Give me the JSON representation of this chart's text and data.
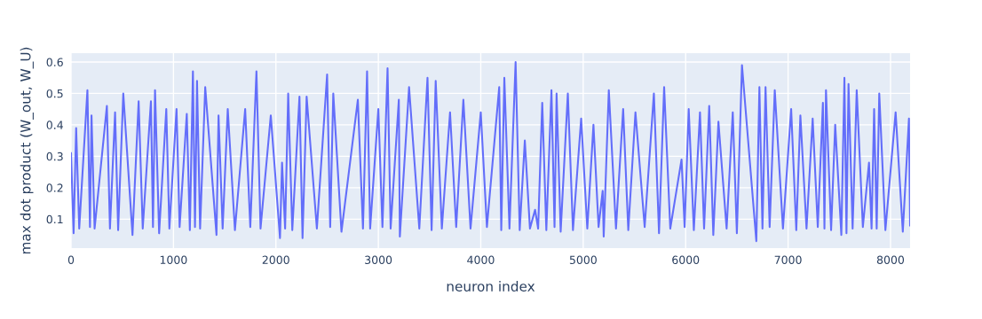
{
  "chart_data": {
    "type": "line",
    "xlabel": "neuron index",
    "ylabel": "max dot product (W_out, W_U)",
    "xlim": [
      0,
      8191
    ],
    "ylim": [
      0.008,
      0.628
    ],
    "xticks": [
      0,
      1000,
      2000,
      3000,
      4000,
      5000,
      6000,
      7000,
      8000
    ],
    "yticks": [
      0.1,
      0.2,
      0.3,
      0.4,
      0.5,
      0.6
    ],
    "grid": true,
    "legend": false,
    "marker": "none",
    "line_style": "solid",
    "series": [
      {
        "color": "#636efa",
        "x": [
          0,
          25,
          50,
          80,
          160,
          185,
          200,
          230,
          350,
          380,
          430,
          460,
          510,
          600,
          660,
          700,
          780,
          800,
          820,
          860,
          930,
          960,
          1030,
          1060,
          1130,
          1160,
          1190,
          1210,
          1230,
          1260,
          1310,
          1420,
          1440,
          1480,
          1530,
          1600,
          1700,
          1750,
          1810,
          1850,
          1950,
          2040,
          2060,
          2090,
          2120,
          2160,
          2230,
          2260,
          2300,
          2400,
          2500,
          2530,
          2560,
          2640,
          2800,
          2850,
          2890,
          2920,
          3000,
          3040,
          3090,
          3120,
          3200,
          3210,
          3300,
          3400,
          3480,
          3520,
          3560,
          3620,
          3700,
          3760,
          3830,
          3900,
          4000,
          4060,
          4180,
          4200,
          4230,
          4280,
          4340,
          4380,
          4430,
          4480,
          4530,
          4560,
          4600,
          4640,
          4690,
          4720,
          4740,
          4780,
          4850,
          4900,
          4980,
          5040,
          5100,
          5150,
          5190,
          5200,
          5250,
          5320,
          5390,
          5440,
          5510,
          5600,
          5690,
          5740,
          5790,
          5850,
          5960,
          5990,
          6030,
          6080,
          6140,
          6180,
          6230,
          6270,
          6320,
          6400,
          6460,
          6500,
          6550,
          6690,
          6720,
          6750,
          6780,
          6820,
          6870,
          6950,
          7030,
          7080,
          7120,
          7180,
          7240,
          7290,
          7340,
          7355,
          7370,
          7420,
          7460,
          7520,
          7550,
          7570,
          7590,
          7630,
          7670,
          7730,
          7790,
          7815,
          7840,
          7865,
          7890,
          7950,
          8050,
          8120,
          8180,
          8191
        ],
        "values": [
          0.31,
          0.055,
          0.39,
          0.07,
          0.51,
          0.075,
          0.43,
          0.07,
          0.46,
          0.07,
          0.44,
          0.065,
          0.5,
          0.05,
          0.475,
          0.07,
          0.475,
          0.075,
          0.51,
          0.055,
          0.45,
          0.07,
          0.45,
          0.075,
          0.435,
          0.065,
          0.57,
          0.075,
          0.54,
          0.07,
          0.52,
          0.05,
          0.43,
          0.07,
          0.45,
          0.065,
          0.45,
          0.075,
          0.57,
          0.07,
          0.43,
          0.04,
          0.28,
          0.07,
          0.5,
          0.065,
          0.49,
          0.04,
          0.49,
          0.07,
          0.56,
          0.075,
          0.5,
          0.06,
          0.48,
          0.07,
          0.57,
          0.07,
          0.45,
          0.075,
          0.58,
          0.07,
          0.48,
          0.045,
          0.52,
          0.07,
          0.55,
          0.065,
          0.54,
          0.07,
          0.44,
          0.075,
          0.48,
          0.07,
          0.44,
          0.075,
          0.52,
          0.065,
          0.55,
          0.07,
          0.6,
          0.065,
          0.35,
          0.07,
          0.13,
          0.07,
          0.47,
          0.065,
          0.51,
          0.075,
          0.5,
          0.06,
          0.5,
          0.065,
          0.42,
          0.07,
          0.4,
          0.075,
          0.19,
          0.045,
          0.51,
          0.07,
          0.45,
          0.065,
          0.44,
          0.075,
          0.5,
          0.055,
          0.52,
          0.07,
          0.29,
          0.075,
          0.45,
          0.065,
          0.44,
          0.07,
          0.46,
          0.05,
          0.41,
          0.07,
          0.44,
          0.055,
          0.59,
          0.03,
          0.52,
          0.07,
          0.52,
          0.075,
          0.51,
          0.07,
          0.45,
          0.065,
          0.43,
          0.07,
          0.42,
          0.075,
          0.47,
          0.07,
          0.51,
          0.065,
          0.4,
          0.05,
          0.55,
          0.055,
          0.53,
          0.07,
          0.51,
          0.075,
          0.28,
          0.07,
          0.45,
          0.07,
          0.5,
          0.065,
          0.44,
          0.06,
          0.42,
          0.08
        ]
      }
    ]
  }
}
